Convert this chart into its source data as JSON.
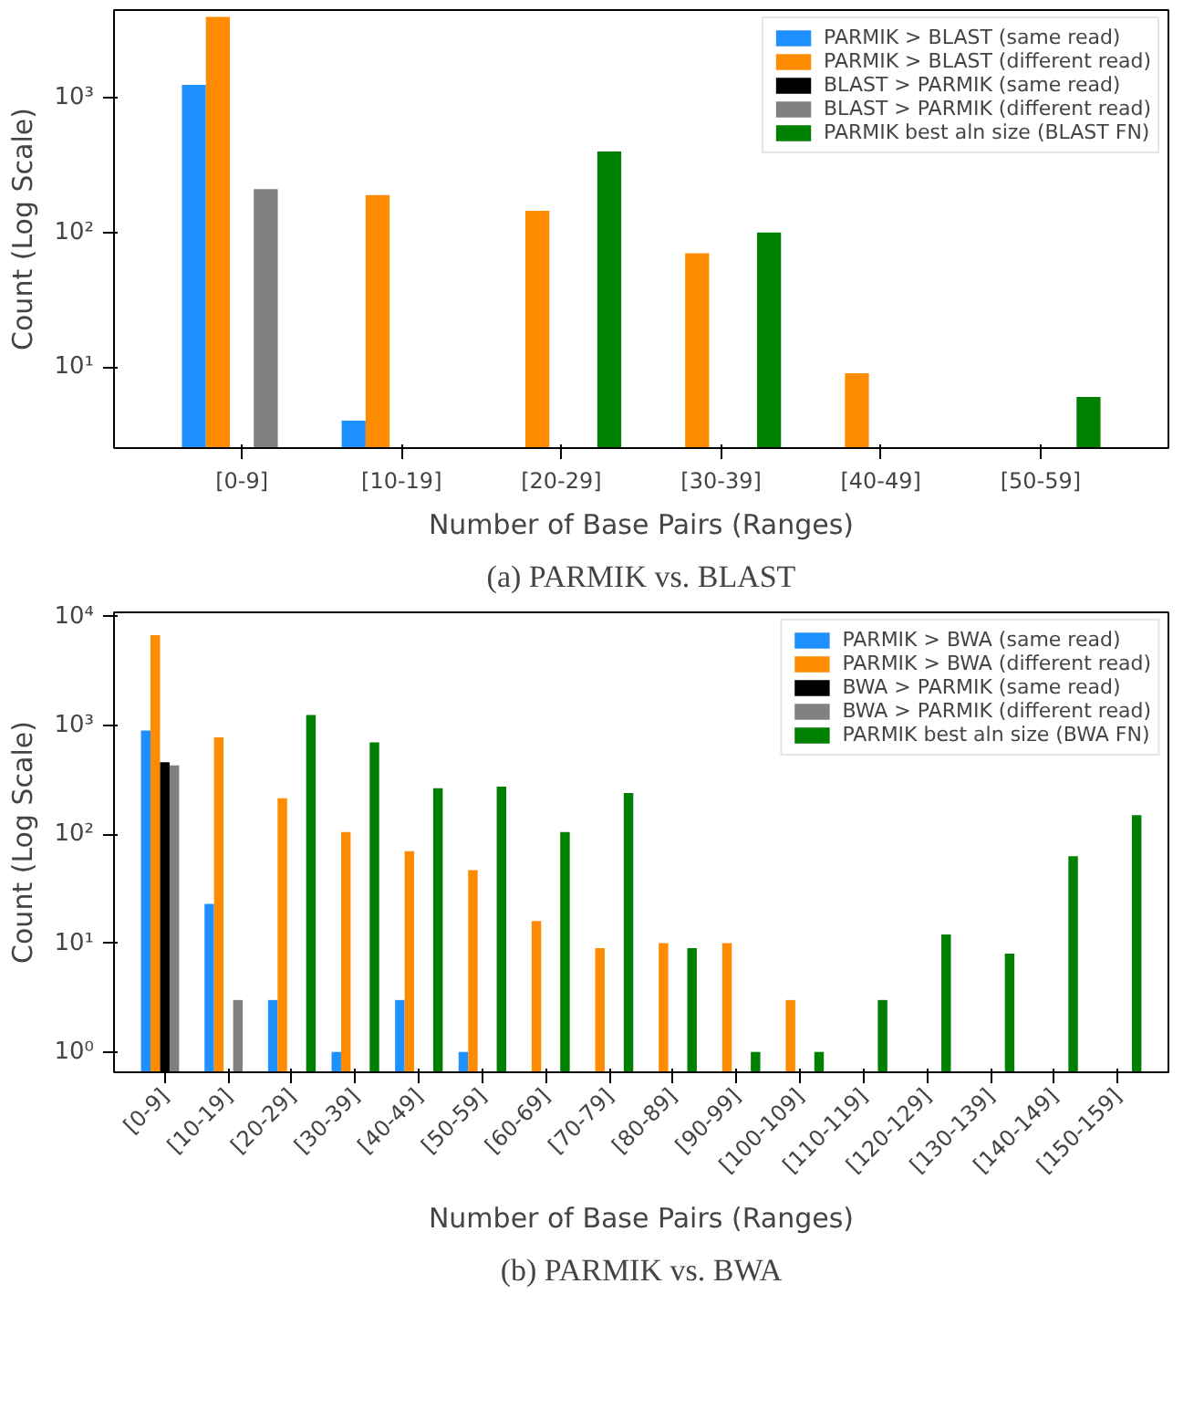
{
  "chart_data": [
    {
      "type": "bar",
      "subtitle": "(a) PARMIK vs. BLAST",
      "xlabel": "Number of Base Pairs (Ranges)",
      "ylabel": "Count (Log Scale)",
      "log": "y",
      "legend": "top right",
      "grid": false,
      "categories": [
        "[0-9]",
        "[10-19]",
        "[20-29]",
        "[30-39]",
        "[40-49]",
        "[50-59]"
      ],
      "ylim": [
        2.5,
        4500
      ],
      "yticks": [
        {
          "value": 10,
          "label": "10¹"
        },
        {
          "value": 100,
          "label": "10²"
        },
        {
          "value": 1000,
          "label": "10³"
        }
      ],
      "series": [
        {
          "name": "PARMIK > BLAST (same read)",
          "color": "#1e90ff",
          "values": [
            1250,
            4,
            null,
            null,
            null,
            null
          ]
        },
        {
          "name": "PARMIK > BLAST (different read)",
          "color": "#ff8c00",
          "values": [
            4000,
            190,
            145,
            70,
            9,
            null
          ]
        },
        {
          "name": "BLAST > PARMIK (same read)",
          "color": "#000000",
          "values": [
            null,
            null,
            null,
            null,
            null,
            null
          ]
        },
        {
          "name": "BLAST > PARMIK (different read)",
          "color": "#808080",
          "values": [
            210,
            null,
            null,
            null,
            null,
            null
          ]
        },
        {
          "name": "PARMIK best aln size (BLAST FN)",
          "color": "#008000",
          "values": [
            null,
            null,
            400,
            100,
            null,
            6
          ]
        }
      ]
    },
    {
      "type": "bar",
      "subtitle": "(b) PARMIK vs. BWA",
      "xlabel": "Number of Base Pairs (Ranges)",
      "ylabel": "Count (Log Scale)",
      "log": "y",
      "legend": "top right",
      "grid": false,
      "categories": [
        "[0-9]",
        "[10-19]",
        "[20-29]",
        "[30-39]",
        "[40-49]",
        "[50-59]",
        "[60-69]",
        "[70-79]",
        "[80-89]",
        "[90-99]",
        "[100-109]",
        "[110-119]",
        "[120-129]",
        "[130-139]",
        "[140-149]",
        "[150-159]"
      ],
      "ylim": [
        0.65,
        11000
      ],
      "yticks": [
        {
          "value": 1,
          "label": "10⁰"
        },
        {
          "value": 10,
          "label": "10¹"
        },
        {
          "value": 100,
          "label": "10²"
        },
        {
          "value": 1000,
          "label": "10³"
        },
        {
          "value": 10000,
          "label": "10⁴"
        }
      ],
      "series": [
        {
          "name": "PARMIK > BWA (same read)",
          "color": "#1e90ff",
          "values": [
            900,
            23,
            3,
            1,
            3,
            1,
            null,
            null,
            null,
            null,
            null,
            null,
            null,
            null,
            null,
            null
          ]
        },
        {
          "name": "PARMIK > BWA (different read)",
          "color": "#ff8c00",
          "values": [
            6800,
            780,
            215,
            105,
            70,
            47,
            16,
            9,
            10,
            10,
            3,
            null,
            null,
            null,
            null,
            null
          ]
        },
        {
          "name": "BWA > PARMIK (same read)",
          "color": "#000000",
          "values": [
            460,
            null,
            null,
            null,
            null,
            null,
            null,
            null,
            null,
            null,
            null,
            null,
            null,
            null,
            null,
            null
          ]
        },
        {
          "name": "BWA > PARMIK (different read)",
          "color": "#808080",
          "values": [
            430,
            3,
            null,
            null,
            null,
            null,
            null,
            null,
            null,
            null,
            null,
            null,
            null,
            null,
            null,
            null
          ]
        },
        {
          "name": "PARMIK best aln size (BWA FN)",
          "color": "#008000",
          "values": [
            null,
            null,
            1250,
            700,
            265,
            275,
            105,
            240,
            9,
            1,
            1,
            3,
            12,
            8,
            63,
            150
          ]
        }
      ]
    }
  ]
}
